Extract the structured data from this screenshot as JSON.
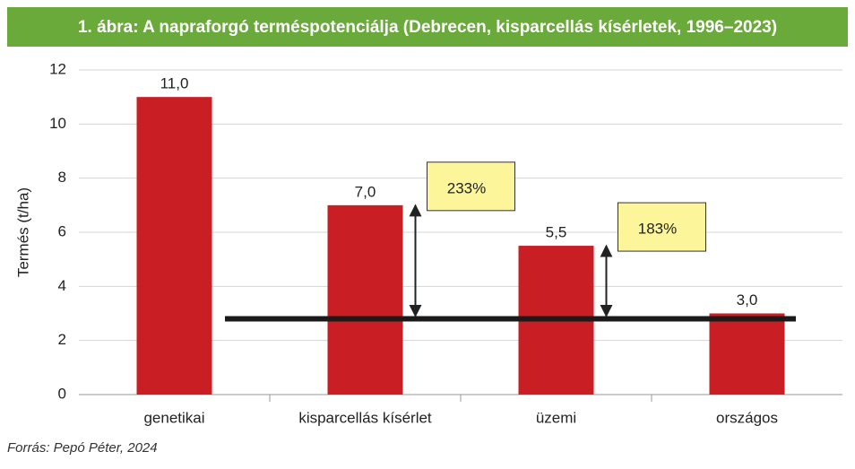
{
  "chart_data": {
    "type": "bar",
    "title": "1. ábra: A napraforgó terméspotenciálja (Debrecen, kisparcellás kísérletek, 1996–2023)",
    "y_label": "Termés (t/ha)",
    "source": "Forrás: Pepó Péter, 2024",
    "categories": [
      "genetikai",
      "kisparcellás kísérlet",
      "üzemi",
      "országos"
    ],
    "values": [
      11.0,
      7.0,
      5.5,
      3.0
    ],
    "value_labels": [
      "11,0",
      "7,0",
      "5,5",
      "3,0"
    ],
    "color": "#c81e24",
    "ylim": [
      0,
      12
    ],
    "yticks": [
      0,
      2,
      4,
      6,
      8,
      10,
      12
    ],
    "grid": true,
    "reference_line": 2.8,
    "annotations": [
      "233%",
      "183%"
    ]
  }
}
